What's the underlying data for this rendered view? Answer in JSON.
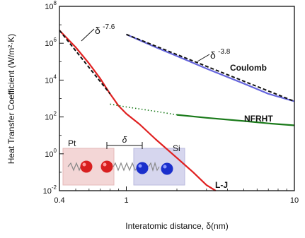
{
  "chart_data": {
    "type": "line",
    "xlabel": "Interatomic distance, δ(nm)",
    "ylabel": "Heat Transfer Coefficient (W/m²·K)",
    "x_scale": "log",
    "y_scale": "log",
    "xlim": [
      0.4,
      10
    ],
    "ylim": [
      0.01,
      100000000
    ],
    "x_ticks": [
      {
        "value": 0.4,
        "label": "0.4"
      },
      {
        "value": 1,
        "label": "1"
      },
      {
        "value": 10,
        "label": "10"
      }
    ],
    "y_ticks": [
      {
        "value": 0.01,
        "base": "10",
        "exp": "-2"
      },
      {
        "value": 1,
        "base": "10",
        "exp": "0"
      },
      {
        "value": 100,
        "base": "10",
        "exp": "2"
      },
      {
        "value": 10000,
        "base": "10",
        "exp": "4"
      },
      {
        "value": 1000000,
        "base": "10",
        "exp": "6"
      },
      {
        "value": 100000000,
        "base": "10",
        "exp": "8"
      }
    ],
    "grid": false,
    "series": [
      {
        "name": "L-J",
        "color": "#e02020",
        "dash": "solid",
        "points": [
          [
            0.4,
            5000000
          ],
          [
            0.5,
            600000
          ],
          [
            0.6,
            80000
          ],
          [
            0.7,
            12000
          ],
          [
            0.8,
            1800
          ],
          [
            0.9,
            400
          ],
          [
            1.0,
            150
          ],
          [
            1.2,
            40
          ],
          [
            1.5,
            6
          ],
          [
            2.0,
            0.6
          ],
          [
            2.5,
            0.1
          ],
          [
            3.0,
            0.02
          ],
          [
            3.4,
            0.01
          ]
        ]
      },
      {
        "name": "Coulomb",
        "color": "#6666dd",
        "dash": "solid",
        "points": [
          [
            1.0,
            3000000
          ],
          [
            1.5,
            600000
          ],
          [
            2,
            200000
          ],
          [
            3,
            42000
          ],
          [
            5,
            6500
          ],
          [
            7,
            1800
          ],
          [
            10,
            700
          ]
        ]
      },
      {
        "name": "NFRHT",
        "color": "#1a7a1a",
        "dash": "dotted-then-solid",
        "points": [
          [
            0.8,
            500
          ],
          [
            1.0,
            350
          ],
          [
            1.5,
            200
          ],
          [
            2.0,
            130
          ],
          [
            3,
            90
          ],
          [
            5,
            60
          ],
          [
            7,
            45
          ],
          [
            10,
            35
          ]
        ],
        "solid_from": 2.0
      }
    ],
    "fits": [
      {
        "label_base": "δ",
        "label_exp": "-7.6",
        "color": "#111111",
        "points": [
          [
            0.4,
            5000000
          ],
          [
            0.8,
            1800
          ]
        ]
      },
      {
        "label_base": "δ",
        "label_exp": "-3.8",
        "color": "#111111",
        "points": [
          [
            1.0,
            3000000
          ],
          [
            10,
            700
          ]
        ]
      }
    ],
    "inset": {
      "left_label": "Pt",
      "right_label": "Si",
      "gap_label": "δ",
      "left_color": "#e03030",
      "right_color": "#1a2fcc",
      "left_bg": "#f3d6d6",
      "right_bg": "#d6d6ee"
    }
  }
}
